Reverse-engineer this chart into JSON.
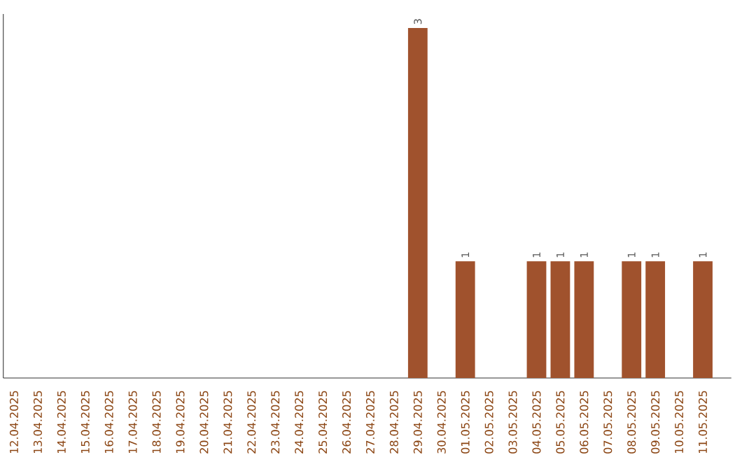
{
  "chart_data": {
    "type": "bar",
    "categories": [
      "12.04.2025",
      "13.04.2025",
      "14.04.2025",
      "15.04.2025",
      "16.04.2025",
      "17.04.2025",
      "18.04.2025",
      "19.04.2025",
      "20.04.2025",
      "21.04.2025",
      "22.04.2025",
      "23.04.2025",
      "24.04.2025",
      "25.04.2025",
      "26.04.2025",
      "27.04.2025",
      "28.04.2025",
      "29.04.2025",
      "30.04.2025",
      "01.05.2025",
      "02.05.2025",
      "03.05.2025",
      "04.05.2025",
      "05.05.2025",
      "06.05.2025",
      "07.05.2025",
      "08.05.2025",
      "09.05.2025",
      "10.05.2025",
      "11.05.2025"
    ],
    "values": [
      null,
      null,
      null,
      null,
      null,
      null,
      null,
      null,
      null,
      null,
      null,
      null,
      null,
      null,
      null,
      null,
      null,
      3,
      null,
      1,
      null,
      null,
      1,
      1,
      1,
      null,
      1,
      1,
      null,
      1
    ],
    "value_labels": [
      null,
      null,
      null,
      null,
      null,
      null,
      null,
      null,
      null,
      null,
      null,
      null,
      null,
      null,
      null,
      null,
      null,
      "3",
      null,
      "1",
      null,
      null,
      "1",
      "1",
      "1",
      null,
      "1",
      "1",
      null,
      "1"
    ],
    "color": "#a0522d"
  }
}
